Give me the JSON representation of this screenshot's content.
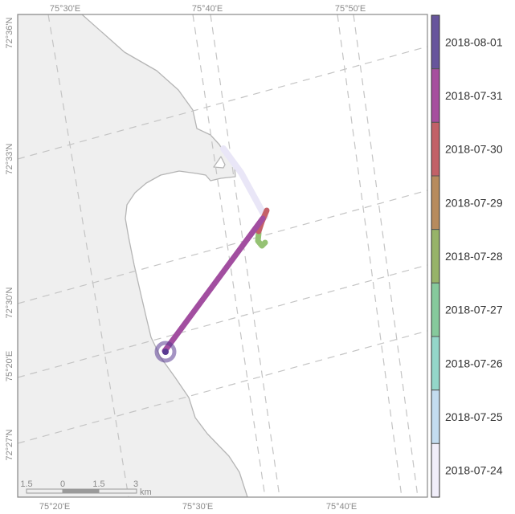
{
  "map": {
    "graticule": {
      "top_labels": [
        "75°30'E",
        "75°40'E",
        "75°50'E"
      ],
      "bottom_labels": [
        "75°20'E",
        "75°30'E",
        "75°40'E"
      ],
      "left_labels": [
        "72°36'N",
        "72°33'N",
        "72°30'N",
        "75°20'E",
        "72°27'N"
      ]
    },
    "scale_bar": {
      "ticks": [
        "1.5",
        "0",
        "1.5",
        "3"
      ],
      "unit": "km"
    },
    "colors": {
      "land": "#efefef",
      "coast": "#b5b5b5",
      "frame": "#888888",
      "grid": "#c4c4c4"
    },
    "track_colors": {
      "2018-07-24": "#e9e6f7",
      "2018-07-28": "#95c274",
      "2018-07-30": "#c46068",
      "2018-07-31": "#a24ea0",
      "2018-08-01": "#5a3a92"
    }
  },
  "legend": {
    "labels": [
      "2018-08-01",
      "2018-07-31",
      "2018-07-30",
      "2018-07-29",
      "2018-07-28",
      "2018-07-27",
      "2018-07-26",
      "2018-07-25",
      "2018-07-24"
    ],
    "colors": [
      "#67559c",
      "#a64f9e",
      "#c26167",
      "#b78b5d",
      "#97b369",
      "#86c99c",
      "#94d6c9",
      "#c3dcf0",
      "#f1eefa"
    ]
  }
}
